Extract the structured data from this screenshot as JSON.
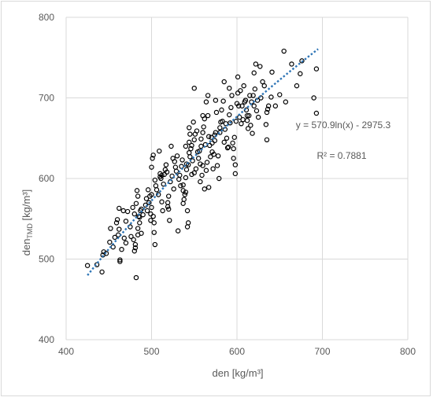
{
  "chart_data": {
    "type": "scatter",
    "title": "",
    "xlabel": "den [kg/m³]",
    "ylabel_main": "den",
    "ylabel_sub": "TMD",
    "ylabel_unit": " [kg/m³]",
    "xlim": [
      400,
      800
    ],
    "ylim": [
      400,
      800
    ],
    "x_ticks": [
      "400",
      "500",
      "600",
      "700",
      "800"
    ],
    "y_ticks": [
      "400",
      "500",
      "600",
      "700",
      "800"
    ],
    "grid": true,
    "legend": "none",
    "marker_color": "#000000",
    "trend_color": "#2e75b6",
    "trendline": {
      "type": "logarithmic",
      "a": 570.9,
      "b": -2975.3,
      "x_range": [
        425,
        695
      ],
      "equation": "y = 570.9ln(x) - 2975.3",
      "r2": "R² = 0.7881"
    },
    "points": [
      [
        425,
        492
      ],
      [
        436,
        493
      ],
      [
        442,
        484
      ],
      [
        443,
        505
      ],
      [
        444,
        509
      ],
      [
        447,
        507
      ],
      [
        451,
        521
      ],
      [
        452,
        538
      ],
      [
        457,
        527
      ],
      [
        459,
        545
      ],
      [
        460,
        549
      ],
      [
        461,
        530
      ],
      [
        462,
        537
      ],
      [
        462,
        563
      ],
      [
        463,
        499
      ],
      [
        463,
        497
      ],
      [
        465,
        512
      ],
      [
        467,
        560
      ],
      [
        468,
        526
      ],
      [
        470,
        547
      ],
      [
        472,
        559
      ],
      [
        475,
        540
      ],
      [
        476,
        528
      ],
      [
        478,
        564
      ],
      [
        479,
        524
      ],
      [
        480,
        556
      ],
      [
        480,
        510
      ],
      [
        481,
        514
      ],
      [
        481,
        518
      ],
      [
        482,
        477
      ],
      [
        482,
        569
      ],
      [
        483,
        585
      ],
      [
        484,
        578
      ],
      [
        484,
        538
      ],
      [
        484,
        530
      ],
      [
        485,
        553
      ],
      [
        486,
        545
      ],
      [
        487,
        560
      ],
      [
        488,
        562
      ],
      [
        490,
        555
      ],
      [
        493,
        567
      ],
      [
        494,
        575
      ],
      [
        496,
        586
      ],
      [
        497,
        570
      ],
      [
        498,
        578
      ],
      [
        499,
        548
      ],
      [
        499,
        556
      ],
      [
        500,
        564
      ],
      [
        500,
        614
      ],
      [
        501,
        625
      ],
      [
        502,
        629
      ],
      [
        502,
        553
      ],
      [
        503,
        545
      ],
      [
        503,
        533
      ],
      [
        504,
        518
      ],
      [
        504,
        598
      ],
      [
        505,
        591
      ],
      [
        506,
        586
      ],
      [
        508,
        580
      ],
      [
        509,
        634
      ],
      [
        510,
        606
      ],
      [
        511,
        600
      ],
      [
        512,
        571
      ],
      [
        512,
        604
      ],
      [
        513,
        560
      ],
      [
        514,
        593
      ],
      [
        515,
        605
      ],
      [
        516,
        611
      ],
      [
        517,
        617
      ],
      [
        518,
        608
      ],
      [
        519,
        570
      ],
      [
        519,
        565
      ],
      [
        520,
        562
      ],
      [
        520,
        578
      ],
      [
        521,
        548
      ],
      [
        522,
        596
      ],
      [
        523,
        640
      ],
      [
        524,
        603
      ],
      [
        526,
        587
      ],
      [
        527,
        621
      ],
      [
        528,
        614
      ],
      [
        529,
        609
      ],
      [
        530,
        628
      ],
      [
        531,
        535
      ],
      [
        532,
        599
      ],
      [
        533,
        604
      ],
      [
        534,
        591
      ],
      [
        535,
        615
      ],
      [
        536,
        623
      ],
      [
        537,
        592
      ],
      [
        537,
        569
      ],
      [
        537,
        585
      ],
      [
        538,
        574
      ],
      [
        539,
        580
      ],
      [
        540,
        601
      ],
      [
        540,
        583
      ],
      [
        541,
        611
      ],
      [
        541,
        618
      ],
      [
        542,
        540
      ],
      [
        542,
        560
      ],
      [
        543,
        545
      ],
      [
        543,
        617
      ],
      [
        544,
        632
      ],
      [
        544,
        645
      ],
      [
        544,
        663
      ],
      [
        545,
        627
      ],
      [
        546,
        637
      ],
      [
        547,
        641
      ],
      [
        547,
        605
      ],
      [
        548,
        622
      ],
      [
        549,
        670
      ],
      [
        550,
        648
      ],
      [
        550,
        607
      ],
      [
        551,
        655
      ],
      [
        552,
        612
      ],
      [
        553,
        659
      ],
      [
        554,
        633
      ],
      [
        555,
        625
      ],
      [
        556,
        634
      ],
      [
        557,
        618
      ],
      [
        557,
        596
      ],
      [
        558,
        649
      ],
      [
        558,
        640
      ],
      [
        559,
        604
      ],
      [
        560,
        657
      ],
      [
        560,
        616
      ],
      [
        561,
        664
      ],
      [
        562,
        674
      ],
      [
        562,
        587
      ],
      [
        563,
        642
      ],
      [
        564,
        695
      ],
      [
        564,
        610
      ],
      [
        565,
        620
      ],
      [
        566,
        678
      ],
      [
        567,
        652
      ],
      [
        567,
        589
      ],
      [
        568,
        641
      ],
      [
        569,
        627
      ],
      [
        570,
        651
      ],
      [
        571,
        644
      ],
      [
        571,
        633
      ],
      [
        572,
        612
      ],
      [
        573,
        630
      ],
      [
        574,
        647
      ],
      [
        574,
        654
      ],
      [
        575,
        657
      ],
      [
        576,
        682
      ],
      [
        577,
        616
      ],
      [
        578,
        628
      ],
      [
        579,
        600
      ],
      [
        580,
        663
      ],
      [
        580,
        657
      ],
      [
        581,
        670
      ],
      [
        582,
        685
      ],
      [
        583,
        671
      ],
      [
        584,
        696
      ],
      [
        585,
        645
      ],
      [
        586,
        661
      ],
      [
        587,
        668
      ],
      [
        588,
        650
      ],
      [
        589,
        638
      ],
      [
        590,
        639
      ],
      [
        591,
        679
      ],
      [
        591,
        712
      ],
      [
        592,
        669
      ],
      [
        593,
        688
      ],
      [
        594,
        703
      ],
      [
        595,
        644
      ],
      [
        596,
        625
      ],
      [
        596,
        637
      ],
      [
        597,
        651
      ],
      [
        598,
        606
      ],
      [
        598,
        617
      ],
      [
        599,
        671
      ],
      [
        600,
        693
      ],
      [
        601,
        706
      ],
      [
        601,
        726
      ],
      [
        602,
        690
      ],
      [
        603,
        676
      ],
      [
        604,
        709
      ],
      [
        605,
        668
      ],
      [
        606,
        690
      ],
      [
        607,
        673
      ],
      [
        608,
        715
      ],
      [
        609,
        695
      ],
      [
        610,
        697
      ],
      [
        611,
        685
      ],
      [
        612,
        672
      ],
      [
        613,
        662
      ],
      [
        614,
        678
      ],
      [
        615,
        703
      ],
      [
        616,
        666
      ],
      [
        617,
        695
      ],
      [
        618,
        656
      ],
      [
        619,
        703
      ],
      [
        620,
        731
      ],
      [
        621,
        711
      ],
      [
        622,
        742
      ],
      [
        623,
        684
      ],
      [
        624,
        697
      ],
      [
        625,
        676
      ],
      [
        627,
        739
      ],
      [
        628,
        700
      ],
      [
        630,
        720
      ],
      [
        632,
        715
      ],
      [
        634,
        667
      ],
      [
        635,
        682
      ],
      [
        635,
        648
      ],
      [
        636,
        686
      ],
      [
        637,
        690
      ],
      [
        640,
        701
      ],
      [
        641,
        732
      ],
      [
        645,
        690
      ],
      [
        650,
        704
      ],
      [
        655,
        758
      ],
      [
        657,
        695
      ],
      [
        664,
        742
      ],
      [
        670,
        715
      ],
      [
        674,
        730
      ],
      [
        676,
        746
      ],
      [
        693,
        736
      ],
      [
        693,
        681
      ],
      [
        690,
        700
      ],
      [
        620,
        690
      ],
      [
        612,
        678
      ],
      [
        560,
        678
      ],
      [
        545,
        655
      ],
      [
        550,
        712
      ],
      [
        566,
        703
      ],
      [
        575,
        697
      ],
      [
        585,
        720
      ],
      [
        540,
        640
      ],
      [
        525,
        625
      ],
      [
        510,
        602
      ],
      [
        500,
        580
      ],
      [
        495,
        560
      ],
      [
        488,
        532
      ],
      [
        486,
        552
      ],
      [
        470,
        520
      ],
      [
        455,
        515
      ]
    ]
  }
}
